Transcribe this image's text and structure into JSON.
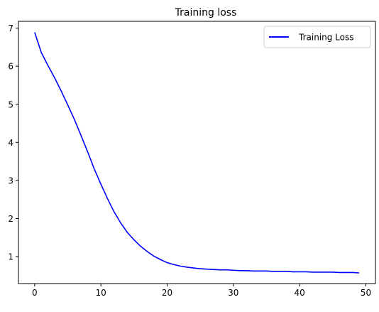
{
  "chart_data": {
    "type": "line",
    "title": "Training loss",
    "xlabel": "",
    "ylabel": "",
    "xlim": [
      -2.45,
      51.45
    ],
    "ylim": [
      0.29,
      7.18
    ],
    "x_ticks": [
      0,
      10,
      20,
      30,
      40,
      50
    ],
    "y_ticks": [
      1,
      2,
      3,
      4,
      5,
      6,
      7
    ],
    "grid": false,
    "legend_position": "top-right",
    "series": [
      {
        "name": "Training Loss",
        "color": "#0000ff",
        "x": [
          0,
          1,
          2,
          3,
          4,
          5,
          6,
          7,
          8,
          9,
          10,
          11,
          12,
          13,
          14,
          15,
          16,
          17,
          18,
          19,
          20,
          21,
          22,
          23,
          24,
          25,
          26,
          27,
          28,
          29,
          30,
          31,
          32,
          33,
          34,
          35,
          36,
          37,
          38,
          39,
          40,
          41,
          42,
          43,
          44,
          45,
          46,
          47,
          48,
          49
        ],
        "values": [
          6.89,
          6.36,
          6.02,
          5.7,
          5.35,
          4.98,
          4.6,
          4.18,
          3.75,
          3.3,
          2.9,
          2.52,
          2.17,
          1.88,
          1.63,
          1.44,
          1.27,
          1.13,
          1.01,
          0.92,
          0.84,
          0.79,
          0.75,
          0.72,
          0.7,
          0.68,
          0.67,
          0.66,
          0.65,
          0.65,
          0.64,
          0.63,
          0.63,
          0.62,
          0.62,
          0.62,
          0.61,
          0.61,
          0.61,
          0.6,
          0.6,
          0.6,
          0.59,
          0.59,
          0.59,
          0.59,
          0.58,
          0.58,
          0.58,
          0.57
        ]
      }
    ]
  }
}
